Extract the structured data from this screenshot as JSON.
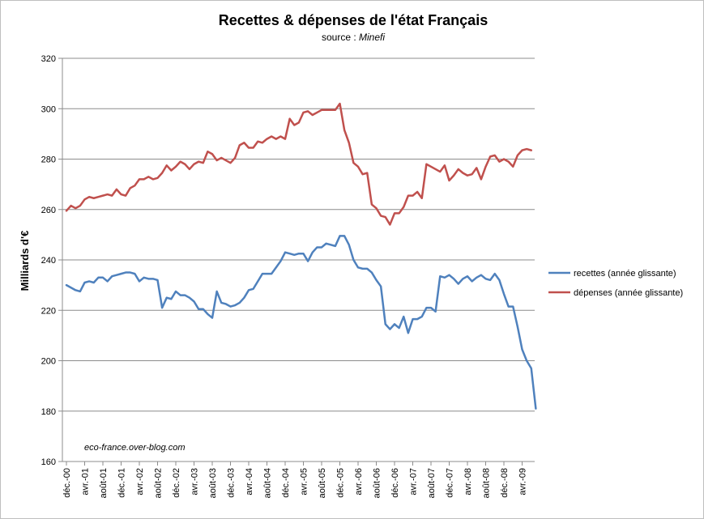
{
  "chart_data": {
    "type": "line",
    "title": "Recettes & dépenses  de l'état Français",
    "subtitle_prefix": "source : ",
    "subtitle_source": "Minefi",
    "ylabel": "Milliards d'€",
    "xlabel": "",
    "ylim": [
      160,
      320
    ],
    "yticks": [
      160,
      180,
      200,
      220,
      240,
      260,
      280,
      300,
      320
    ],
    "grid": "horizontal",
    "legend_position": "right",
    "annotation": "eco-france.over-blog.com",
    "x_tick_labels": [
      "déc.-00",
      "avr.-01",
      "août-01",
      "déc.-01",
      "avr.-02",
      "août-02",
      "déc.-02",
      "avr.-03",
      "août-03",
      "déc.-03",
      "avr.-04",
      "août-04",
      "déc.-04",
      "avr.-05",
      "août-05",
      "déc.-05",
      "avr.-06",
      "août-06",
      "déc.-06",
      "avr.-07",
      "août-07",
      "déc.-07",
      "avr.-08",
      "août-08",
      "déc.-08",
      "avr.-09"
    ],
    "points_per_tick": 4,
    "series": [
      {
        "name": "recettes (année glissante)",
        "color": "#4f81bd",
        "values": [
          230,
          229,
          228,
          227.5,
          231,
          231.5,
          231,
          233,
          233,
          231.5,
          233.5,
          234,
          234.5,
          235,
          235,
          234.5,
          231.5,
          233,
          232.5,
          232.5,
          232,
          221,
          225,
          224.5,
          227.5,
          226,
          226,
          225,
          223.5,
          220.5,
          220.5,
          218.5,
          217,
          227.5,
          223,
          222.5,
          221.5,
          222,
          223,
          225,
          228,
          228.5,
          231.5,
          234.5,
          234.5,
          234.5,
          237,
          239.5,
          243,
          242.5,
          242,
          242.5,
          242.5,
          239.5,
          243,
          245,
          245,
          246.5,
          246,
          245.5,
          249.5,
          249.5,
          246,
          240,
          237,
          236.5,
          236.5,
          235,
          232,
          229.5,
          214.5,
          212.5,
          214.5,
          213,
          217.5,
          211,
          216.5,
          216.5,
          217.5,
          221,
          221,
          219.5,
          233.5,
          233,
          234,
          232.5,
          230.5,
          232.5,
          233.5,
          231.5,
          233,
          234,
          232.5,
          232,
          234.5,
          232,
          226.5,
          221.5,
          221.5,
          213.5,
          204.5,
          200,
          197,
          181
        ]
      },
      {
        "name": "dépenses (année glissante)",
        "color": "#c0504d",
        "values": [
          259.5,
          261.5,
          260.5,
          261.5,
          264,
          265,
          264.5,
          265,
          265.5,
          266,
          265.5,
          268,
          266,
          265.5,
          268.5,
          269.5,
          272,
          272,
          273,
          272,
          272.5,
          274.5,
          277.5,
          275.5,
          277,
          279,
          278,
          276,
          278,
          279,
          278.5,
          283,
          282,
          279.5,
          280.5,
          279.5,
          278.5,
          280.5,
          285.5,
          286.5,
          284.5,
          284.5,
          287,
          286.5,
          288,
          289,
          288,
          289,
          288,
          296,
          293.5,
          294.5,
          298.5,
          299,
          297.5,
          298.5,
          299.5,
          299.5,
          299.5,
          299.5,
          302,
          291.5,
          286.5,
          278.5,
          277,
          274,
          274.5,
          262,
          260.5,
          257.5,
          257,
          254,
          258.5,
          258.5,
          261,
          265.5,
          265.5,
          267,
          264.5,
          278,
          277,
          276,
          275,
          277.5,
          271.5,
          273.5,
          276,
          274.5,
          273.5,
          274,
          276.5,
          272,
          277,
          281,
          281.5,
          279,
          280,
          279,
          277,
          281.5,
          283.5,
          284,
          283.5
        ]
      }
    ]
  }
}
